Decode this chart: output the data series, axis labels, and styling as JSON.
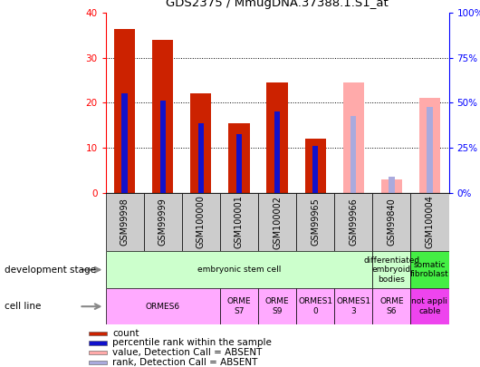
{
  "title": "GDS2375 / MmugDNA.37388.1.S1_at",
  "samples": [
    "GSM99998",
    "GSM99999",
    "GSM100000",
    "GSM100001",
    "GSM100002",
    "GSM99965",
    "GSM99966",
    "GSM99840",
    "GSM100004"
  ],
  "count_values": [
    36.5,
    34.0,
    22.0,
    15.5,
    24.5,
    12.0,
    0,
    0,
    0
  ],
  "percentile_values": [
    22.0,
    20.5,
    15.5,
    13.0,
    18.0,
    10.5,
    0,
    0,
    0
  ],
  "absent_value_values": [
    0,
    0,
    0,
    0,
    0,
    0,
    24.5,
    3.0,
    21.0
  ],
  "absent_rank_values": [
    0,
    0,
    0,
    0,
    0,
    0,
    17.0,
    3.5,
    19.0
  ],
  "ylim_left": [
    0,
    40
  ],
  "ylim_right": [
    0,
    100
  ],
  "left_yticks": [
    0,
    10,
    20,
    30,
    40
  ],
  "right_yticks": [
    0,
    25,
    50,
    75,
    100
  ],
  "right_yticklabels": [
    "0%",
    "25%",
    "50%",
    "75%",
    "100%"
  ],
  "count_color": "#cc2200",
  "percentile_color": "#1111cc",
  "absent_value_color": "#ffaaaa",
  "absent_rank_color": "#aaaadd",
  "bar_width": 0.55,
  "percentile_bar_width": 0.15,
  "dev_stage_boxes": [
    {
      "label": "embryonic stem cell",
      "start": 0,
      "end": 7,
      "color": "#ccffcc"
    },
    {
      "label": "differentiated\nembryoid\nbodies",
      "start": 7,
      "end": 8,
      "color": "#ccffcc"
    },
    {
      "label": "somatic\nfibroblast",
      "start": 8,
      "end": 9,
      "color": "#44ee44"
    }
  ],
  "cell_line_boxes": [
    {
      "label": "ORMES6",
      "start": 0,
      "end": 3,
      "color": "#ffaaff"
    },
    {
      "label": "ORME\nS7",
      "start": 3,
      "end": 4,
      "color": "#ffaaff"
    },
    {
      "label": "ORME\nS9",
      "start": 4,
      "end": 5,
      "color": "#ffaaff"
    },
    {
      "label": "ORMES1\n0",
      "start": 5,
      "end": 6,
      "color": "#ffaaff"
    },
    {
      "label": "ORMES1\n3",
      "start": 6,
      "end": 7,
      "color": "#ffaaff"
    },
    {
      "label": "ORME\nS6",
      "start": 7,
      "end": 8,
      "color": "#ffaaff"
    },
    {
      "label": "not appli\ncable",
      "start": 8,
      "end": 9,
      "color": "#ee44ee"
    }
  ],
  "sample_box_color": "#cccccc",
  "legend_items": [
    {
      "label": "count",
      "color": "#cc2200"
    },
    {
      "label": "percentile rank within the sample",
      "color": "#1111cc"
    },
    {
      "label": "value, Detection Call = ABSENT",
      "color": "#ffaaaa"
    },
    {
      "label": "rank, Detection Call = ABSENT",
      "color": "#aaaadd"
    }
  ],
  "label_fontsize": 8,
  "tick_fontsize": 7.5,
  "sample_fontsize": 7,
  "cell_fontsize": 6.5,
  "legend_fontsize": 7.5
}
